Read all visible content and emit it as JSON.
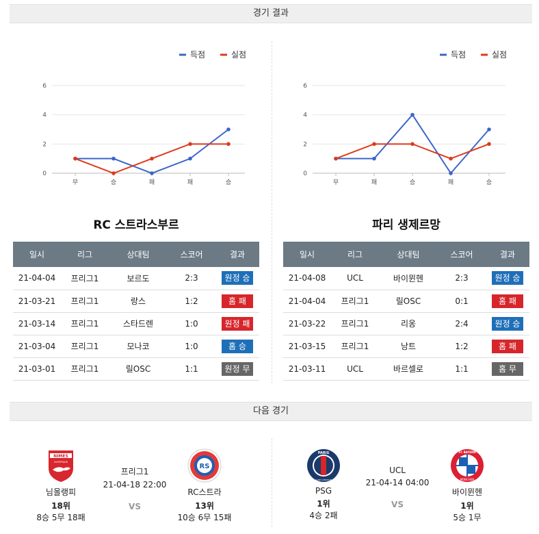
{
  "sections": {
    "results_title": "경기 결과",
    "next_title": "다음 경기"
  },
  "legend": {
    "scored": "득점",
    "conceded": "실점",
    "scored_color": "#3b66c9",
    "conceded_color": "#dc3b1c"
  },
  "chart_data": [
    {
      "type": "line",
      "categories": [
        "무",
        "승",
        "패",
        "패",
        "승"
      ],
      "ylim": [
        0,
        6
      ],
      "yticks": [
        0,
        2,
        4,
        6
      ],
      "grid": true,
      "legend_position": "top-right",
      "series": [
        {
          "name": "득점",
          "color": "#3b66c9",
          "values": [
            1,
            1,
            0,
            1,
            3
          ]
        },
        {
          "name": "실점",
          "color": "#dc3b1c",
          "values": [
            1,
            0,
            1,
            2,
            2
          ]
        }
      ]
    },
    {
      "type": "line",
      "categories": [
        "무",
        "패",
        "승",
        "패",
        "승"
      ],
      "ylim": [
        0,
        6
      ],
      "yticks": [
        0,
        2,
        4,
        6
      ],
      "grid": true,
      "legend_position": "top-right",
      "series": [
        {
          "name": "득점",
          "color": "#3b66c9",
          "values": [
            1,
            1,
            4,
            0,
            3
          ]
        },
        {
          "name": "실점",
          "color": "#dc3b1c",
          "values": [
            1,
            2,
            2,
            1,
            2
          ]
        }
      ]
    }
  ],
  "teams": [
    {
      "name": "RC 스트라스부르",
      "headers": [
        "일시",
        "리그",
        "상대팀",
        "스코어",
        "결과"
      ],
      "rows": [
        {
          "date": "21-04-04",
          "league": "프리그1",
          "opponent": "보르도",
          "score": "2:3",
          "result": "원정 승",
          "result_color": "blue"
        },
        {
          "date": "21-03-21",
          "league": "프리그1",
          "opponent": "랑스",
          "score": "1:2",
          "result": "홈 패",
          "result_color": "red"
        },
        {
          "date": "21-03-14",
          "league": "프리그1",
          "opponent": "스타드렌",
          "score": "1:0",
          "result": "원정 패",
          "result_color": "red"
        },
        {
          "date": "21-03-04",
          "league": "프리그1",
          "opponent": "모나코",
          "score": "1:0",
          "result": "홈 승",
          "result_color": "blue"
        },
        {
          "date": "21-03-01",
          "league": "프리그1",
          "opponent": "릴OSC",
          "score": "1:1",
          "result": "원정 무",
          "result_color": "gray"
        }
      ]
    },
    {
      "name": "파리 생제르망",
      "headers": [
        "일시",
        "리그",
        "상대팀",
        "스코어",
        "결과"
      ],
      "rows": [
        {
          "date": "21-04-08",
          "league": "UCL",
          "opponent": "바이뮌헨",
          "score": "2:3",
          "result": "원정 승",
          "result_color": "blue"
        },
        {
          "date": "21-04-04",
          "league": "프리그1",
          "opponent": "릴OSC",
          "score": "0:1",
          "result": "홈 패",
          "result_color": "red"
        },
        {
          "date": "21-03-22",
          "league": "프리그1",
          "opponent": "리옹",
          "score": "2:4",
          "result": "원정 승",
          "result_color": "blue"
        },
        {
          "date": "21-03-15",
          "league": "프리그1",
          "opponent": "낭트",
          "score": "1:2",
          "result": "홈 패",
          "result_color": "red"
        },
        {
          "date": "21-03-11",
          "league": "UCL",
          "opponent": "바르셀로",
          "score": "1:1",
          "result": "홈 무",
          "result_color": "gray"
        }
      ]
    }
  ],
  "next_matches": [
    {
      "league": "프리그1",
      "datetime": "21-04-18 22:00",
      "vs": "VS",
      "home": {
        "name": "님올랭피",
        "rank": "18위",
        "record": "8승 5무 18패",
        "logo_text": "NIMES",
        "logo_sub": "OLYMPIQUE",
        "logo_icon": "nimes-crest-icon"
      },
      "away": {
        "name": "RC스트라",
        "rank": "13위",
        "record": "10승 6무 15패",
        "logo_text": "RS",
        "logo_icon": "strasbourg-crest-icon"
      }
    },
    {
      "league": "UCL",
      "datetime": "21-04-14 04:00",
      "vs": "VS",
      "home": {
        "name": "PSG",
        "rank": "1위",
        "record": "4승 2패",
        "logo_text": "PARIS",
        "logo_sub": "SAINT-GERMAIN",
        "logo_icon": "psg-crest-icon"
      },
      "away": {
        "name": "바이뮌헨",
        "rank": "1위",
        "record": "5승 1무",
        "logo_text": "FC BAYERN",
        "logo_sub": "MÜNCHEN",
        "logo_icon": "bayern-crest-icon"
      }
    }
  ]
}
